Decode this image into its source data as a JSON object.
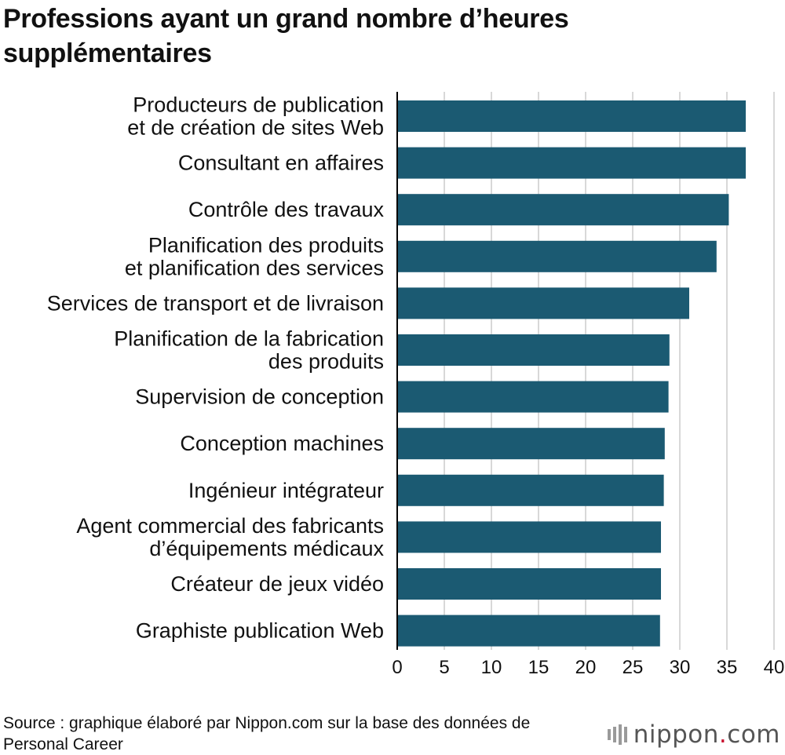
{
  "title": "Professions ayant un grand nombre d’heures supplémentaires",
  "source": "Source : graphique élaboré par Nippon.com sur la base des données de Personal Career",
  "logo": {
    "name": "nippon",
    "dot": ".",
    "suffix": "com"
  },
  "colors": {
    "bar": "#1b5a72",
    "grid": "#cccccc",
    "axis": "#000000"
  },
  "chart_data": {
    "type": "bar",
    "orientation": "horizontal",
    "title": "Professions ayant un grand nombre d’heures supplémentaires",
    "xlabel": "",
    "ylabel": "",
    "xlim": [
      0,
      40
    ],
    "ticks": [
      "0",
      "5",
      "10",
      "15",
      "20",
      "25",
      "30",
      "35",
      "40"
    ],
    "tick_values": [
      0,
      5,
      10,
      15,
      20,
      25,
      30,
      35,
      40
    ],
    "grid": true,
    "categories": [
      [
        "Producteurs de publication",
        "et de création de sites Web"
      ],
      [
        "Consultant en affaires"
      ],
      [
        "Contrôle des travaux"
      ],
      [
        "Planification des produits",
        "et planification des services"
      ],
      [
        "Services de transport et de livraison"
      ],
      [
        "Planification de la fabrication",
        "des produits"
      ],
      [
        "Supervision de conception"
      ],
      [
        "Conception machines"
      ],
      [
        "Ingénieur intégrateur"
      ],
      [
        "Agent commercial des fabricants",
        "d’équipements médicaux"
      ],
      [
        "Créateur de jeux vidéo"
      ],
      [
        "Graphiste publication Web"
      ]
    ],
    "values": [
      37.0,
      37.0,
      35.2,
      33.9,
      31.0,
      28.9,
      28.8,
      28.4,
      28.3,
      28.0,
      28.0,
      27.9
    ]
  }
}
